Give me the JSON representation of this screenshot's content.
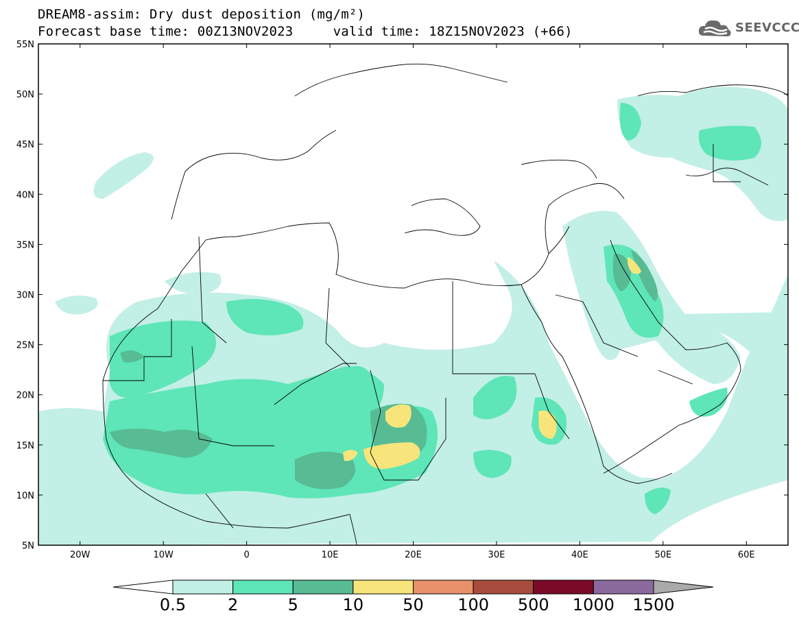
{
  "header": {
    "title_line1": "DREAM8-assim: Dry dust deposition (mg/m²)",
    "title_line2": "Forecast base time: 00Z13NOV2023     valid time: 18Z15NOV2023 (+66)"
  },
  "logo": {
    "text": "SEEVCCC",
    "icon": "cloud-icon"
  },
  "map": {
    "lat_labels": [
      "55N",
      "50N",
      "45N",
      "40N",
      "35N",
      "30N",
      "25N",
      "20N",
      "15N",
      "10N",
      "5N"
    ],
    "lon_labels": [
      "20W",
      "10W",
      "0",
      "10E",
      "20E",
      "30E",
      "40E",
      "50E",
      "60E"
    ]
  },
  "colorbar": {
    "labels": [
      "0.5",
      "2",
      "5",
      "10",
      "50",
      "100",
      "500",
      "1000",
      "1500"
    ],
    "colors": [
      "#ffffff",
      "#c2efe6",
      "#5ee5b8",
      "#57bb93",
      "#f7e57c",
      "#e8906a",
      "#a84c3e",
      "#7b0a28",
      "#8a6a9c",
      "#aaaaaa"
    ]
  }
}
